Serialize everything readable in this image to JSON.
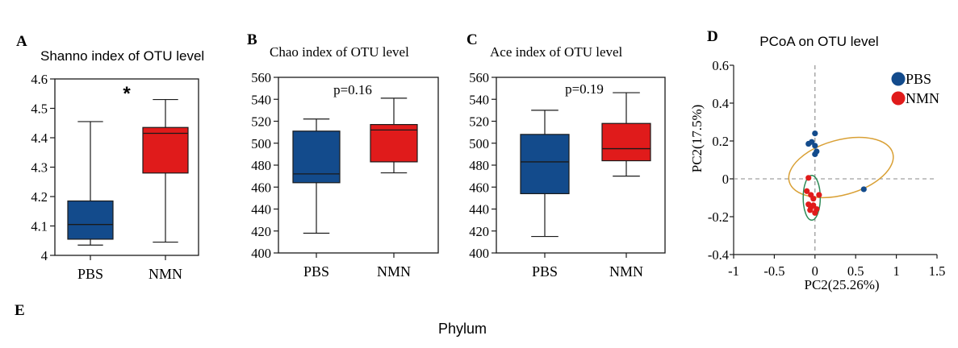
{
  "figure": {
    "section_label": "E",
    "section_title": "Phylum"
  },
  "chart_data": [
    {
      "panel": "A",
      "type": "box",
      "title": "Shanno index of OTU level",
      "annotation": "*",
      "categories": [
        "PBS",
        "NMN"
      ],
      "series": [
        {
          "name": "PBS",
          "color": "#134b8c",
          "whisker_low": 4.035,
          "q1": 4.055,
          "median": 4.105,
          "q3": 4.185,
          "whisker_high": 4.455
        },
        {
          "name": "NMN",
          "color": "#e01b1b",
          "whisker_low": 4.045,
          "q1": 4.28,
          "median": 4.415,
          "q3": 4.435,
          "whisker_high": 4.53
        }
      ],
      "ylim": [
        4.0,
        4.6
      ],
      "yticks": [
        4,
        4.1,
        4.2,
        4.3,
        4.4,
        4.5,
        4.6
      ],
      "ytick_labels": [
        "4",
        "4.1",
        "4.2",
        "4.3",
        "4.4",
        "4.5",
        "4.6"
      ]
    },
    {
      "panel": "B",
      "type": "box",
      "title": "Chao index of OTU level",
      "annotation": "p=0.16",
      "categories": [
        "PBS",
        "NMN"
      ],
      "series": [
        {
          "name": "PBS",
          "color": "#134b8c",
          "whisker_low": 418,
          "q1": 464,
          "median": 472,
          "q3": 511,
          "whisker_high": 522
        },
        {
          "name": "NMN",
          "color": "#e01b1b",
          "whisker_low": 473,
          "q1": 483,
          "median": 512,
          "q3": 517,
          "whisker_high": 541
        }
      ],
      "ylim": [
        400,
        560
      ],
      "yticks": [
        400,
        420,
        440,
        460,
        480,
        500,
        520,
        540,
        560
      ],
      "ytick_labels": [
        "400",
        "420",
        "440",
        "460",
        "480",
        "500",
        "520",
        "540",
        "560"
      ]
    },
    {
      "panel": "C",
      "type": "box",
      "title": "Ace index of OTU level",
      "annotation": "p=0.19",
      "categories": [
        "PBS",
        "NMN"
      ],
      "series": [
        {
          "name": "PBS",
          "color": "#134b8c",
          "whisker_low": 415,
          "q1": 454,
          "median": 483,
          "q3": 508,
          "whisker_high": 530
        },
        {
          "name": "NMN",
          "color": "#e01b1b",
          "whisker_low": 470,
          "q1": 484,
          "median": 495,
          "q3": 518,
          "whisker_high": 546
        }
      ],
      "ylim": [
        400,
        560
      ],
      "yticks": [
        400,
        420,
        440,
        460,
        480,
        500,
        520,
        540,
        560
      ],
      "ytick_labels": [
        "400",
        "420",
        "440",
        "460",
        "480",
        "500",
        "520",
        "540",
        "560"
      ]
    },
    {
      "panel": "D",
      "type": "scatter",
      "title": "PCoA on OTU level",
      "xlabel": "PC2(25.26%)",
      "ylabel": "PC2(17.5%)",
      "xlim": [
        -1,
        1.5
      ],
      "ylim": [
        -0.4,
        0.6
      ],
      "xticks": [
        -1,
        -0.5,
        0,
        0.5,
        1,
        1.5
      ],
      "xtick_labels": [
        "-1",
        "-0.5",
        "0",
        "0.5",
        "1",
        "1.5"
      ],
      "yticks": [
        -0.4,
        -0.2,
        0,
        0.2,
        0.4,
        0.6
      ],
      "ytick_labels": [
        "-0.4",
        "-0.2",
        "0",
        "0.2",
        "0.4",
        "0.6"
      ],
      "legend": [
        {
          "label": "PBS",
          "color": "#134b8c"
        },
        {
          "label": "NMN",
          "color": "#e01b1b"
        }
      ],
      "series": [
        {
          "name": "PBS",
          "color": "#134b8c",
          "points": [
            [
              -0.08,
              0.185
            ],
            [
              -0.04,
              0.195
            ],
            [
              0.0,
              0.175
            ],
            [
              0.0,
              0.24
            ],
            [
              0.02,
              0.145
            ],
            [
              0.0,
              0.13
            ],
            [
              0.6,
              -0.055
            ]
          ],
          "ellipse": {
            "cx": 0.32,
            "cy": 0.06,
            "rx": 0.66,
            "ry": 0.145,
            "angle_deg": -15.5,
            "color": "#d9a035"
          }
        },
        {
          "name": "NMN",
          "color": "#e01b1b",
          "points": [
            [
              -0.08,
              0.005
            ],
            [
              -0.1,
              -0.065
            ],
            [
              -0.05,
              -0.085
            ],
            [
              -0.02,
              -0.105
            ],
            [
              0.05,
              -0.085
            ],
            [
              -0.08,
              -0.135
            ],
            [
              -0.05,
              -0.15
            ],
            [
              -0.02,
              -0.14
            ],
            [
              0.02,
              -0.16
            ],
            [
              0.0,
              -0.18
            ],
            [
              -0.06,
              -0.165
            ]
          ],
          "ellipse": {
            "cx": -0.04,
            "cy": -0.1,
            "rx": 0.105,
            "ry": 0.118,
            "angle_deg": 0,
            "color": "#2e8b57"
          }
        }
      ]
    }
  ]
}
